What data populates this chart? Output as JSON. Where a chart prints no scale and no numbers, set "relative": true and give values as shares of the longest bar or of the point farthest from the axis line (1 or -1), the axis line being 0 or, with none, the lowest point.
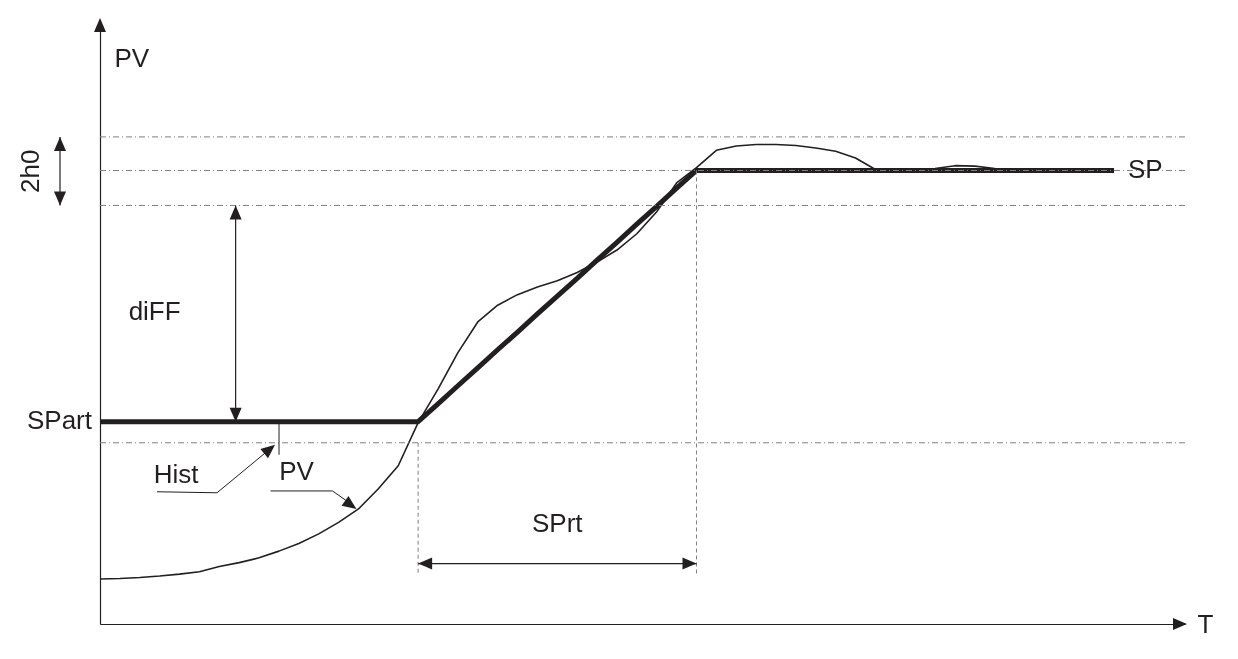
{
  "chart_data": {
    "type": "line",
    "relative": true,
    "xlabel": "T",
    "ylabel": "PV",
    "marker": "none",
    "categories": [
      null,
      null,
      null,
      null,
      null,
      null,
      null,
      null,
      null,
      null,
      null,
      null,
      null,
      null,
      null,
      null,
      null,
      null,
      null,
      null,
      null,
      null,
      null,
      null,
      null,
      null,
      null,
      null,
      null,
      null,
      null,
      null,
      null,
      null,
      null,
      null,
      null,
      null,
      null,
      null,
      null,
      null,
      null,
      null,
      null,
      null,
      null,
      null,
      null,
      null,
      null,
      null
    ],
    "series": [
      {
        "name": "SP",
        "color": "#231f20",
        "values": [
          0.422,
          0.422,
          0.422,
          0.422,
          0.422,
          0.422,
          0.422,
          0.422,
          0.422,
          0.422,
          0.422,
          0.422,
          0.422,
          0.422,
          0.422,
          0.422,
          0.422,
          0.459,
          0.497,
          0.534,
          0.572,
          0.609,
          0.647,
          0.684,
          0.721,
          0.759,
          0.796,
          0.834,
          0.871,
          0.909,
          0.946,
          0.946,
          0.946,
          0.946,
          0.946,
          0.946,
          0.946,
          0.946,
          0.946,
          0.946,
          0.946,
          0.946,
          0.946,
          0.946,
          0.946,
          0.946,
          0.946,
          0.946,
          0.946,
          0.946,
          0.946,
          0.946
        ]
      },
      {
        "name": "PV",
        "color": "#231f20",
        "values": [
          0.094,
          0.095,
          0.097,
          0.1,
          0.104,
          0.109,
          0.12,
          0.128,
          0.138,
          0.152,
          0.168,
          0.188,
          0.212,
          0.24,
          0.282,
          0.33,
          0.42,
          0.49,
          0.566,
          0.63,
          0.665,
          0.687,
          0.703,
          0.716,
          0.733,
          0.755,
          0.78,
          0.814,
          0.86,
          0.92,
          0.952,
          0.988,
          0.997,
          1.0,
          1.0,
          0.998,
          0.993,
          0.986,
          0.972,
          0.948,
          0.946,
          0.947,
          0.95,
          0.956,
          0.955,
          0.95,
          0.946,
          null,
          null,
          null,
          null,
          null
        ]
      }
    ],
    "ref_lines": [
      {
        "axis": "y",
        "value": 1.016,
        "line_style": "dashed",
        "color": "#808080"
      },
      {
        "axis": "y",
        "value": 0.873,
        "line_style": "dashed",
        "color": "#808080"
      },
      {
        "axis": "y",
        "value": 0.946,
        "line_style": "dashed",
        "color": "#808080"
      },
      {
        "axis": "y",
        "value": 0.378,
        "line_style": "dashed",
        "color": "#808080"
      }
    ],
    "annotations": [
      "2h0",
      "diFF",
      "Hist",
      "SPart",
      "SPrt"
    ]
  }
}
